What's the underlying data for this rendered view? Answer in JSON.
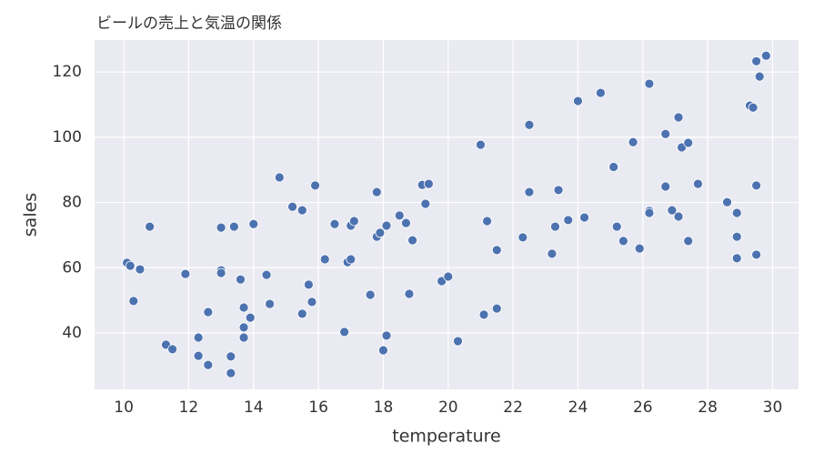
{
  "chart_data": {
    "type": "scatter",
    "title": "ビールの売上と気温の関係",
    "x_label": "temperature",
    "y_label": "sales",
    "color": "#4c72b0",
    "grid": true,
    "xlim": [
      9.1,
      30.8
    ],
    "ylim": [
      22.7,
      129.8
    ],
    "xticks": [
      10,
      12,
      14,
      16,
      18,
      20,
      22,
      24,
      26,
      28,
      30
    ],
    "yticks": [
      40,
      60,
      80,
      100,
      120
    ],
    "x": [
      10.1,
      10.2,
      10.3,
      10.5,
      10.8,
      11.3,
      11.5,
      11.9,
      12.3,
      12.3,
      12.6,
      12.6,
      13.0,
      13.0,
      13.0,
      13.3,
      13.3,
      13.4,
      13.6,
      13.7,
      13.7,
      13.7,
      13.9,
      14.0,
      14.4,
      14.5,
      14.8,
      15.2,
      15.5,
      15.5,
      15.7,
      15.8,
      15.9,
      16.2,
      16.5,
      16.8,
      16.9,
      17.0,
      17.0,
      17.1,
      17.6,
      17.8,
      17.8,
      17.9,
      18.0,
      18.1,
      18.1,
      18.5,
      18.7,
      18.8,
      18.9,
      19.2,
      19.4,
      19.3,
      19.8,
      20.0,
      20.3,
      21.0,
      21.1,
      21.2,
      21.5,
      21.5,
      22.3,
      22.5,
      22.5,
      23.2,
      23.3,
      23.4,
      23.7,
      24.0,
      24.2,
      24.7,
      25.1,
      25.2,
      25.4,
      25.7,
      25.9,
      26.2,
      26.2,
      26.2,
      26.7,
      26.7,
      26.9,
      27.1,
      27.1,
      27.2,
      27.4,
      27.4,
      27.7,
      28.6,
      28.9,
      28.9,
      28.9,
      29.3,
      29.4,
      29.5,
      29.5,
      29.5,
      29.6,
      29.8
    ],
    "y": [
      61.5,
      60.6,
      49.8,
      59.5,
      72.6,
      36.4,
      35.0,
      58.1,
      38.6,
      33.0,
      46.4,
      30.2,
      72.3,
      59.2,
      58.4,
      32.8,
      27.7,
      72.6,
      56.4,
      47.8,
      41.7,
      38.6,
      44.7,
      73.4,
      57.8,
      48.9,
      87.7,
      78.7,
      77.6,
      45.9,
      54.8,
      49.5,
      85.2,
      62.6,
      73.4,
      40.3,
      61.7,
      62.6,
      72.9,
      74.3,
      51.7,
      83.2,
      69.5,
      70.7,
      34.7,
      72.9,
      39.2,
      76.0,
      73.7,
      52.0,
      68.4,
      85.4,
      85.7,
      79.6,
      55.9,
      57.3,
      37.5,
      97.7,
      45.6,
      74.3,
      65.4,
      47.5,
      69.3,
      103.8,
      83.2,
      64.3,
      72.6,
      83.8,
      74.6,
      111.1,
      75.4,
      113.6,
      90.9,
      72.6,
      68.2,
      98.5,
      65.9,
      116.4,
      77.4,
      76.8,
      101.0,
      84.9,
      77.6,
      106.1,
      75.7,
      96.9,
      98.3,
      68.2,
      85.7,
      80.1,
      76.8,
      69.5,
      62.9,
      109.7,
      109.1,
      123.3,
      85.2,
      64.0,
      118.6,
      125.0
    ]
  }
}
